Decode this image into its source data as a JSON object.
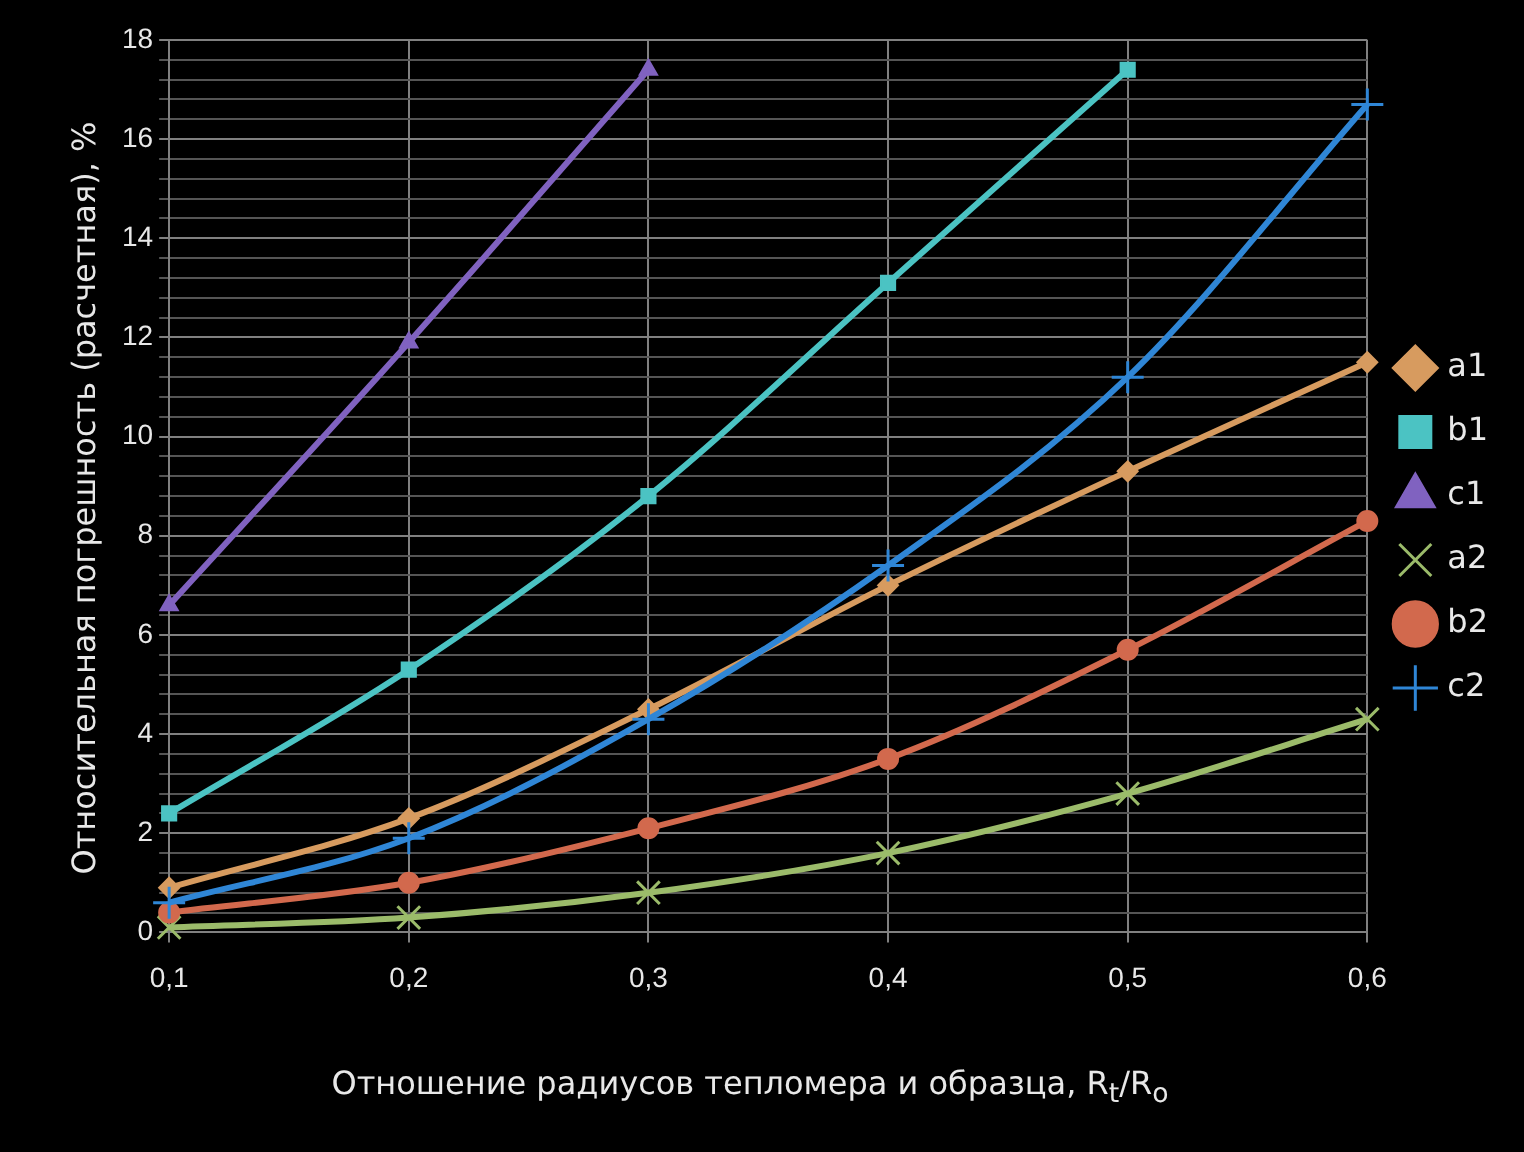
{
  "chart_data": {
    "type": "line",
    "xlabel": "Отношение радиусов тепломера и образца, R$_{t}$/R$_{o}$",
    "ylabel": "Относительная погрешность (расчетная), %",
    "categories": [
      "0,1",
      "0,2",
      "0,3",
      "0,4",
      "0,5",
      "0,6"
    ],
    "series": [
      {
        "name": "a1",
        "color": "#d79b5f",
        "marker": "diamond",
        "values": [
          0.9,
          2.3,
          4.5,
          7.0,
          9.3,
          11.5
        ]
      },
      {
        "name": "b1",
        "color": "#4bc3c3",
        "marker": "square",
        "values": [
          2.4,
          5.3,
          8.8,
          13.1,
          17.4,
          null
        ]
      },
      {
        "name": "c1",
        "color": "#8062c0",
        "marker": "triangle",
        "values": [
          6.6,
          11.9,
          17.4,
          null,
          null,
          null
        ]
      },
      {
        "name": "a2",
        "color": "#9bbb6a",
        "marker": "cross",
        "values": [
          0.1,
          0.3,
          0.8,
          1.6,
          2.8,
          4.3
        ]
      },
      {
        "name": "b2",
        "color": "#d2694d",
        "marker": "circle",
        "values": [
          0.4,
          1.0,
          2.1,
          3.5,
          5.7,
          8.3
        ]
      },
      {
        "name": "c2",
        "color": "#2f86d6",
        "marker": "plus",
        "values": [
          0.6,
          1.9,
          4.3,
          7.4,
          11.2,
          16.7
        ]
      }
    ],
    "ylim": [
      0,
      18
    ],
    "yticks": [
      0,
      {
        "value": 0.4,
        "label": null
      },
      {
        "value": 0.8,
        "label": null
      },
      {
        "value": 1.2,
        "label": null
      },
      {
        "value": 1.6,
        "label": null
      },
      2,
      {
        "value": 2.4,
        "label": null
      },
      {
        "value": 2.8,
        "label": null
      },
      {
        "value": 3.2,
        "label": null
      },
      {
        "value": 3.6,
        "label": null
      },
      4,
      {
        "value": 4.4,
        "label": null
      },
      {
        "value": 4.8,
        "label": null
      },
      {
        "value": 5.2,
        "label": null
      },
      {
        "value": 5.6,
        "label": null
      },
      6,
      {
        "value": 6.4,
        "label": null
      },
      {
        "value": 6.8,
        "label": null
      },
      {
        "value": 7.2,
        "label": null
      },
      {
        "value": 7.6,
        "label": null
      },
      8,
      {
        "value": 8.4,
        "label": null
      },
      {
        "value": 8.8,
        "label": null
      },
      {
        "value": 9.2,
        "label": null
      },
      {
        "value": 9.6,
        "label": null
      },
      10,
      {
        "value": 10.4,
        "label": null
      },
      {
        "value": 10.8,
        "label": null
      },
      {
        "value": 11.2,
        "label": null
      },
      {
        "value": 11.6,
        "label": null
      },
      12,
      {
        "value": 12.4,
        "label": null
      },
      {
        "value": 12.8,
        "label": null
      },
      {
        "value": 13.2,
        "label": null
      },
      {
        "value": 13.6,
        "label": null
      },
      14,
      {
        "value": 14.4,
        "label": null
      },
      {
        "value": 14.8,
        "label": null
      },
      {
        "value": 15.2,
        "label": null
      },
      {
        "value": 15.6,
        "label": null
      },
      16,
      {
        "value": 16.4,
        "label": null
      },
      {
        "value": 16.8,
        "label": null
      },
      {
        "value": 17.2,
        "label": null
      },
      {
        "value": 17.6,
        "label": null
      },
      18
    ],
    "grid": true,
    "legend": "right",
    "line_style": "solid"
  }
}
